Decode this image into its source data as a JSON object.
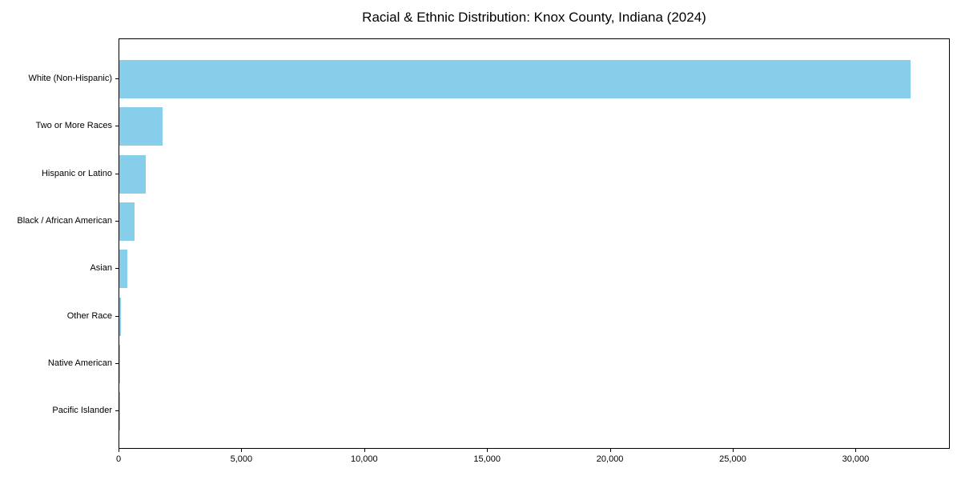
{
  "chart_data": {
    "type": "bar",
    "orientation": "horizontal",
    "title": "Racial & Ethnic Distribution: Knox County, Indiana (2024)",
    "categories": [
      "White (Non-Hispanic)",
      "Two or More Races",
      "Hispanic or Latino",
      "Black / African American",
      "Asian",
      "Other Race",
      "Native American",
      "Pacific Islander"
    ],
    "values": [
      32200,
      1760,
      1075,
      610,
      335,
      65,
      25,
      10
    ],
    "xlabel": "",
    "ylabel": "",
    "xlim": [
      0,
      33800
    ],
    "xticks": [
      0,
      5000,
      10000,
      15000,
      20000,
      25000,
      30000
    ],
    "xtick_labels": [
      "0",
      "5,000",
      "10,000",
      "15,000",
      "20,000",
      "25,000",
      "30,000"
    ],
    "bar_color": "#87CEEB",
    "axis_color": "#000000",
    "text_color": "#000000",
    "background_color": "#ffffff",
    "grid": false,
    "legend": null
  }
}
